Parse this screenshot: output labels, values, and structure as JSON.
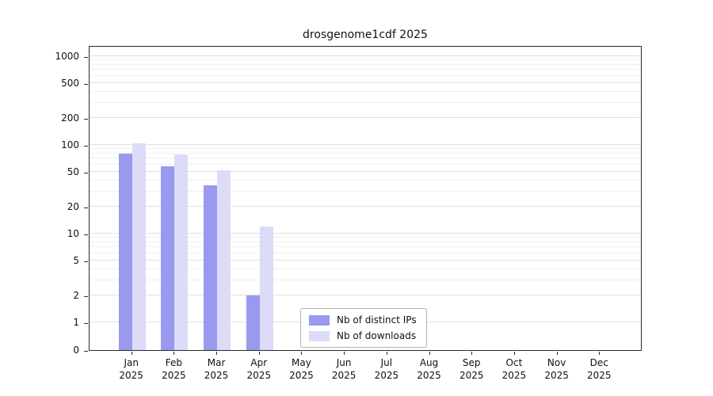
{
  "chart_data": {
    "type": "bar",
    "title": "drosgenome1cdf 2025",
    "year_label": "2025",
    "categories": [
      "Jan",
      "Feb",
      "Mar",
      "Apr",
      "May",
      "Jun",
      "Jul",
      "Aug",
      "Sep",
      "Oct",
      "Nov",
      "Dec"
    ],
    "series": [
      {
        "name": "Nb of distinct IPs",
        "color": "#9999ee",
        "values": [
          80,
          57,
          35,
          2,
          0,
          0,
          0,
          0,
          0,
          0,
          0,
          0
        ]
      },
      {
        "name": "Nb of downloads",
        "color": "#dcdcf8",
        "values": [
          105,
          78,
          52,
          12,
          0,
          0,
          0,
          0,
          0,
          0,
          0,
          0
        ]
      }
    ],
    "y_axis": {
      "scale": "log",
      "ticks": [
        0,
        1,
        2,
        5,
        10,
        20,
        50,
        100,
        200,
        500,
        1000
      ],
      "ylim": [
        0,
        1400
      ]
    },
    "grid": true,
    "legend_position": "lower center",
    "background_color": "#ffffff",
    "gridline_color_major": "#e0e0e0",
    "gridline_color_minor": "#efefef"
  }
}
